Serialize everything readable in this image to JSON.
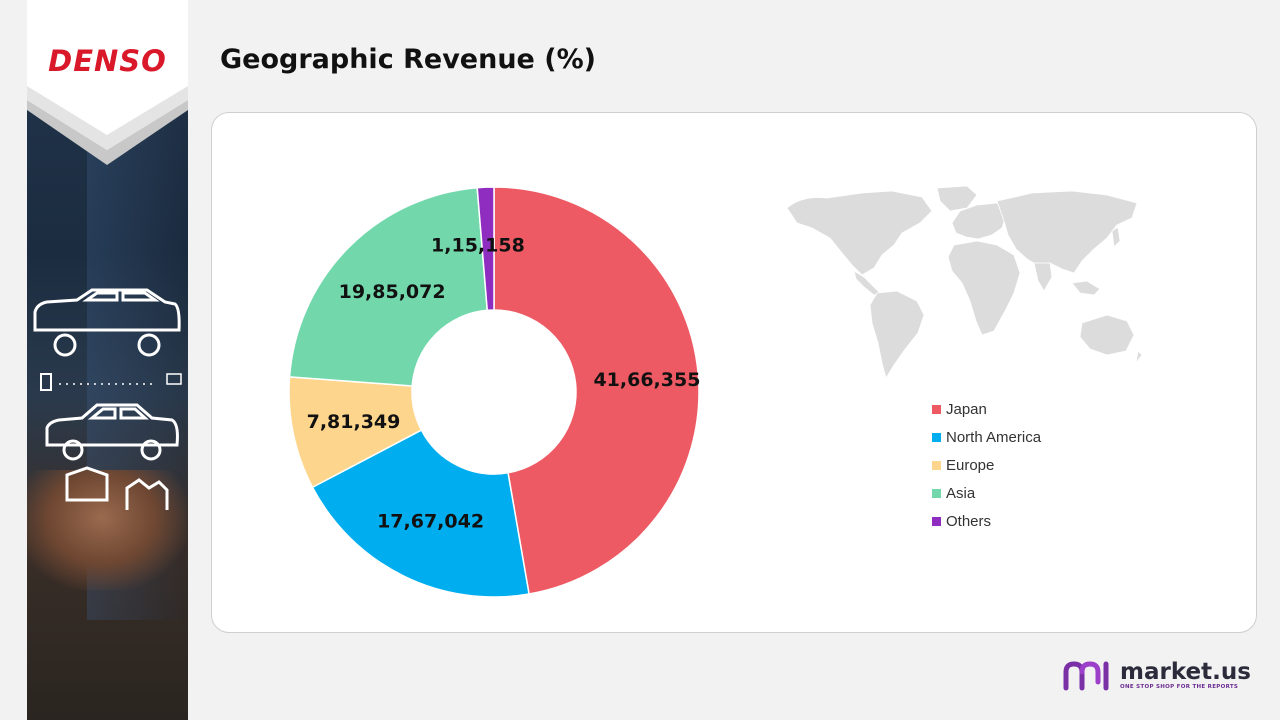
{
  "brand": {
    "logo": "DENSO"
  },
  "page": {
    "title": "Geographic Revenue (%)"
  },
  "chart_data": {
    "type": "pie",
    "donut": true,
    "title": "Geographic Revenue (%)",
    "categories": [
      "Japan",
      "North America",
      "Europe",
      "Asia",
      "Others"
    ],
    "values": [
      4166355,
      1767042,
      781349,
      1985072,
      115158
    ],
    "labels": [
      "41,66,355",
      "17,67,042",
      "7,81,349",
      "19,85,072",
      "1,15,158"
    ],
    "colors": [
      "#ed5a63",
      "#00aeef",
      "#fdd58c",
      "#72d8ac",
      "#8e2dbf"
    ],
    "legend_position": "right"
  },
  "footer": {
    "brand_name": "market.us",
    "tagline": "ONE STOP SHOP FOR THE REPORTS"
  }
}
